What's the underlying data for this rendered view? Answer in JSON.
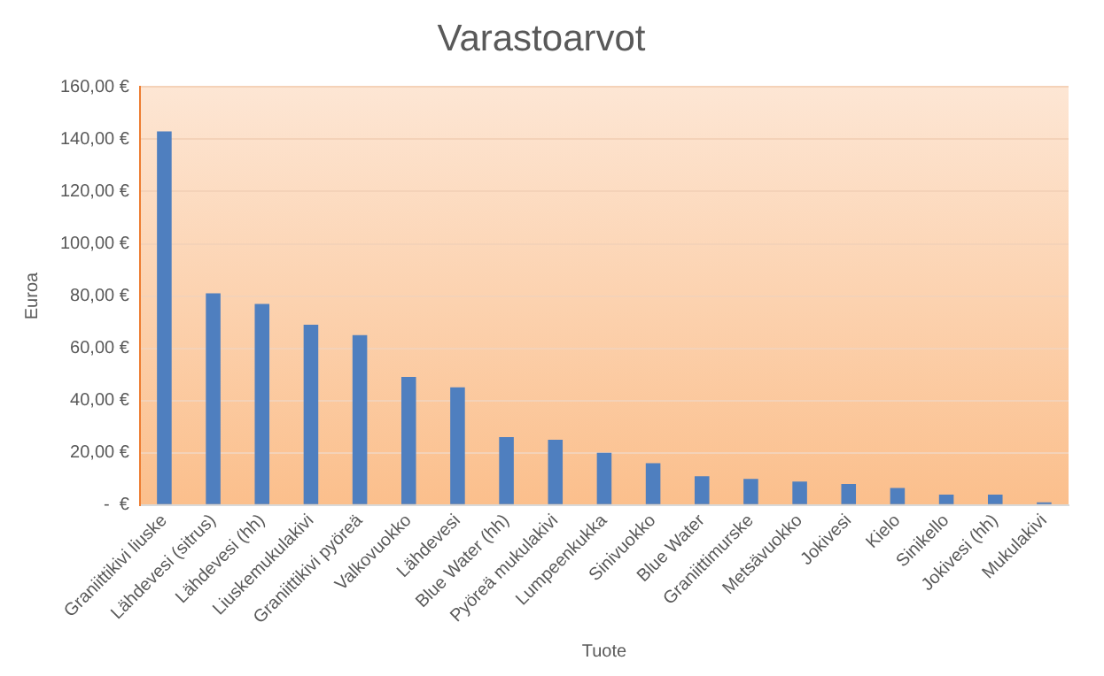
{
  "chart_data": {
    "type": "bar",
    "title": "Varastoarvot",
    "xlabel": "Tuote",
    "ylabel": "Euroa",
    "categories": [
      "Graniittikivi liuske",
      "Lähdevesi (sitrus)",
      "Lähdevesi (hh)",
      "Liuskemukulakivi",
      "Graniittikivi pyöreä",
      "Valkovuokko",
      "Lähdevesi",
      "Blue Water (hh)",
      "Pyöreä mukulakivi",
      "Lumpeenkukka",
      "Sinivuokko",
      "Blue Water",
      "Graniittimurske",
      "Metsävuokko",
      "Jokivesi",
      "Kielo",
      "Sinikello",
      "Jokivesi (hh)",
      "Mukulakivi"
    ],
    "values": [
      143,
      81,
      77,
      69,
      65,
      49,
      45,
      26,
      25,
      20,
      16,
      11,
      10,
      9,
      8,
      6.5,
      4,
      4,
      1
    ],
    "color": "#4f7fbf",
    "ylim": [
      0,
      160
    ],
    "yticks": [
      {
        "value": 0,
        "label": "-  €"
      },
      {
        "value": 20,
        "label": "20,00 €"
      },
      {
        "value": 40,
        "label": "40,00 €"
      },
      {
        "value": 60,
        "label": "60,00 €"
      },
      {
        "value": 80,
        "label": "80,00 €"
      },
      {
        "value": 100,
        "label": "100,00 €"
      },
      {
        "value": 120,
        "label": "120,00 €"
      },
      {
        "value": 140,
        "label": "140,00 €"
      },
      {
        "value": 160,
        "label": "160,00 €"
      }
    ],
    "grid": "y",
    "legend": false
  }
}
